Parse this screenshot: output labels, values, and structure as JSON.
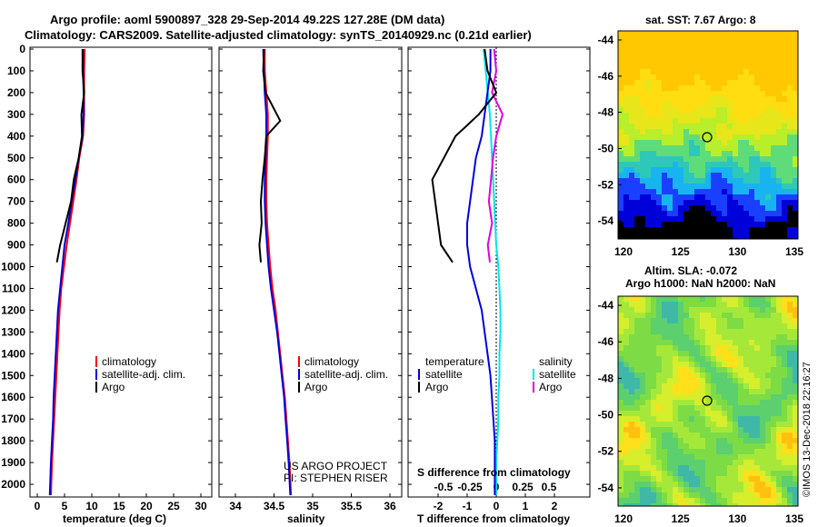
{
  "title": {
    "line1": "Argo profile: aoml 5900897_328 29-Sep-2014 49.22S 127.28E (DM data)",
    "line2": "Climatology: CARS2009. Satellite-adjusted climatology: synTS_20140929.nc (0.21d earlier)"
  },
  "depth_ticks": [
    "0",
    "100",
    "200",
    "300",
    "400",
    "500",
    "600",
    "700",
    "800",
    "900",
    "1000",
    "1100",
    "1200",
    "1300",
    "1400",
    "1500",
    "1600",
    "1700",
    "1800",
    "1900",
    "2000"
  ],
  "colors": {
    "climatology": "#ff0000",
    "satellite": "#0000dd",
    "argo": "#000000",
    "sat_salinity": "#00e5e5",
    "argo_salinity": "#e000e0"
  },
  "panel_t": {
    "xlabel": "temperature (deg C)",
    "xticks": [
      "0",
      "5",
      "10",
      "15",
      "20",
      "25",
      "30"
    ],
    "legend": [
      "climatology",
      "satellite-adj. clim.",
      "Argo"
    ]
  },
  "panel_s": {
    "xlabel": "salinity",
    "xticks": [
      "34",
      "34.5",
      "35",
      "35.5",
      "36"
    ],
    "legend": [
      "climatology",
      "satellite-adj. clim.",
      "Argo"
    ],
    "credit1": "US ARGO PROJECT",
    "credit2": "PI: STEPHEN RISER"
  },
  "panel_d": {
    "xlabel": "T difference from climatology",
    "xticks": [
      "-2",
      "-1",
      "0",
      "1",
      "2"
    ],
    "stitle": "S difference from climatology",
    "sticks": [
      "-0.5",
      "-0.25",
      "0",
      "0.25",
      "0.5"
    ],
    "leg_temp": "temperature",
    "leg_sal": "salinity",
    "leg_items": [
      "satellite",
      "Argo"
    ]
  },
  "map_sst": {
    "title": "sat. SST: 7.67 Argo: 8",
    "yticks": [
      "-44",
      "-46",
      "-48",
      "-50",
      "-52",
      "-54"
    ],
    "xticks": [
      "120",
      "125",
      "130",
      "135"
    ]
  },
  "map_sla": {
    "title1": "Altim. SLA: -0.072",
    "title2": "Argo h1000: NaN h2000: NaN",
    "yticks": [
      "-44",
      "-46",
      "-48",
      "-50",
      "-52",
      "-54"
    ],
    "xticks": [
      "120",
      "125",
      "130",
      "135"
    ]
  },
  "watermark": "©IMOS 13-Dec-2018 22:16:27",
  "chart_data": [
    {
      "type": "line",
      "title": "",
      "xlabel": "temperature (deg C)",
      "ylabel": "",
      "xlim": [
        -1,
        31
      ],
      "ylim": [
        2050,
        0
      ],
      "grid": false,
      "legend": "bottom-right",
      "series": [
        {
          "name": "climatology",
          "x": [
            8.7,
            8.6,
            8.6,
            8.6,
            8.4,
            7.7,
            7.2,
            6.6,
            6.0,
            5.4,
            4.9,
            4.4,
            4.1,
            3.9,
            3.7,
            3.5,
            3.3,
            3.1,
            2.9,
            2.7,
            2.5
          ],
          "y": [
            0,
            100,
            200,
            300,
            400,
            500,
            600,
            700,
            800,
            900,
            1000,
            1100,
            1200,
            1300,
            1400,
            1500,
            1600,
            1700,
            1800,
            1900,
            2050
          ]
        },
        {
          "name": "satellite-adj. clim.",
          "x": [
            8.4,
            8.4,
            8.5,
            8.5,
            8.3,
            7.6,
            7.0,
            6.3,
            5.7,
            5.0,
            4.6,
            4.2,
            3.8,
            3.6,
            3.4,
            3.2,
            3.0,
            2.9,
            2.7,
            2.5,
            2.3
          ],
          "y": [
            0,
            100,
            200,
            300,
            400,
            500,
            600,
            700,
            800,
            900,
            1000,
            1100,
            1200,
            1300,
            1400,
            1500,
            1600,
            1700,
            1800,
            1900,
            2050
          ]
        },
        {
          "name": "Argo",
          "x": [
            8.3,
            8.3,
            8.6,
            8.1,
            8.2,
            7.6,
            6.7,
            6.2,
            5.2,
            4.2,
            3.6
          ],
          "y": [
            0,
            100,
            200,
            300,
            400,
            500,
            600,
            700,
            800,
            900,
            980
          ]
        }
      ]
    },
    {
      "type": "line",
      "title": "",
      "xlabel": "salinity",
      "ylabel": "",
      "xlim": [
        33.8,
        36.1
      ],
      "ylim": [
        2050,
        0
      ],
      "grid": false,
      "legend": "bottom-right",
      "series": [
        {
          "name": "climatology",
          "x": [
            34.38,
            34.38,
            34.4,
            34.42,
            34.42,
            34.41,
            34.4,
            34.4,
            34.41,
            34.43,
            34.45,
            34.48,
            34.52,
            34.55,
            34.58,
            34.61,
            34.64,
            34.66,
            34.68,
            34.7,
            34.72
          ],
          "y": [
            0,
            100,
            200,
            300,
            400,
            500,
            600,
            700,
            800,
            900,
            1000,
            1100,
            1200,
            1300,
            1400,
            1500,
            1600,
            1700,
            1800,
            1900,
            2050
          ]
        },
        {
          "name": "satellite-adj. clim.",
          "x": [
            34.36,
            34.37,
            34.38,
            34.4,
            34.4,
            34.39,
            34.38,
            34.38,
            34.39,
            34.41,
            34.43,
            34.46,
            34.5,
            34.54,
            34.57,
            34.6,
            34.63,
            34.65,
            34.67,
            34.69,
            34.71
          ],
          "y": [
            0,
            100,
            200,
            300,
            400,
            500,
            600,
            700,
            800,
            900,
            1000,
            1100,
            1200,
            1300,
            1400,
            1500,
            1600,
            1700,
            1800,
            1900,
            2050
          ]
        },
        {
          "name": "Argo",
          "x": [
            34.37,
            34.36,
            34.39,
            34.58,
            34.4,
            34.38,
            34.35,
            34.33,
            34.34,
            34.31,
            34.33
          ],
          "y": [
            0,
            100,
            200,
            330,
            400,
            500,
            600,
            700,
            800,
            900,
            980
          ]
        }
      ]
    },
    {
      "type": "line",
      "title": "",
      "xlabel": "T difference from climatology",
      "ylabel": "",
      "xlim": [
        -2.9,
        2.9
      ],
      "ylim": [
        2050,
        0
      ],
      "grid": false,
      "legend": "bottom-left",
      "series": [
        {
          "name": "satellite",
          "x": [
            -0.2,
            -0.2,
            -0.3,
            -0.4,
            -0.5,
            -0.7,
            -0.8,
            -0.9,
            -1.0,
            -1.0,
            -0.9,
            -0.7,
            -0.5,
            -0.4,
            -0.3,
            -0.2,
            -0.15,
            -0.1,
            -0.05,
            -0.05,
            -0.05
          ],
          "y": [
            0,
            100,
            200,
            300,
            400,
            500,
            600,
            700,
            800,
            900,
            1000,
            1100,
            1200,
            1300,
            1400,
            1500,
            1600,
            1700,
            1800,
            1900,
            2050
          ]
        },
        {
          "name": "Argo",
          "x": [
            -0.4,
            -0.3,
            0.0,
            -0.6,
            -1.4,
            -1.8,
            -2.2,
            -2.1,
            -2.0,
            -1.9,
            -1.5
          ],
          "y": [
            0,
            100,
            200,
            300,
            400,
            500,
            600,
            700,
            800,
            900,
            980
          ]
        }
      ]
    },
    {
      "type": "line",
      "title": "",
      "xlabel": "S difference from climatology",
      "ylabel": "",
      "xlim": [
        -0.72,
        0.72
      ],
      "ylim": [
        2050,
        0
      ],
      "grid": false,
      "legend": "bottom-right",
      "series": [
        {
          "name": "satellite",
          "x": [
            -0.12,
            -0.1,
            -0.08,
            -0.06,
            -0.05,
            -0.04,
            -0.03,
            -0.02,
            -0.01,
            0.0,
            0.02,
            0.03,
            0.04,
            0.04,
            0.03,
            0.03,
            0.02,
            0.02,
            0.01,
            0.0,
            0.0
          ],
          "y": [
            0,
            100,
            200,
            300,
            400,
            500,
            600,
            700,
            800,
            900,
            1000,
            1100,
            1200,
            1300,
            1400,
            1500,
            1600,
            1700,
            1800,
            1900,
            2050
          ]
        },
        {
          "name": "Argo",
          "x": [
            -0.02,
            0.0,
            -0.04,
            0.06,
            0.0,
            -0.03,
            -0.05,
            -0.07,
            -0.04,
            -0.08,
            -0.06
          ],
          "y": [
            0,
            100,
            200,
            300,
            400,
            500,
            600,
            700,
            800,
            900,
            980
          ]
        }
      ]
    },
    {
      "type": "heatmap",
      "title": "sat. SST: 7.67 Argo: 8",
      "xlim": [
        120,
        135
      ],
      "ylim": [
        -55,
        -43.5
      ],
      "marker": {
        "x": 127.28,
        "y": -49.22
      }
    },
    {
      "type": "heatmap",
      "title": "Altim. SLA: -0.072",
      "xlim": [
        120,
        135
      ],
      "ylim": [
        -55,
        -43.5
      ],
      "marker": {
        "x": 127.28,
        "y": -49.22
      }
    }
  ]
}
